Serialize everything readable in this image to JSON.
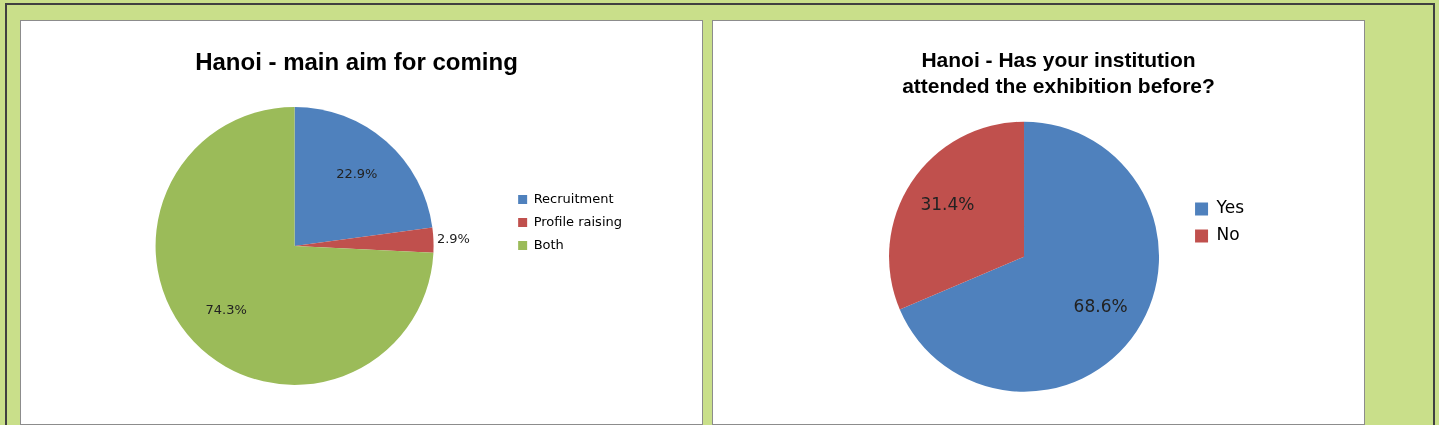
{
  "chart_data": [
    {
      "type": "pie",
      "title": "Hanoi - main aim for coming",
      "categories": [
        "Recruitment",
        "Profile raising",
        "Both"
      ],
      "values": [
        22.9,
        2.9,
        74.3
      ],
      "colors": [
        "#4f81bd",
        "#c0504d",
        "#9bbb59"
      ],
      "value_labels": [
        "22.9%",
        "2.9%",
        "74.3%"
      ],
      "legend": "right"
    },
    {
      "type": "pie",
      "title": "Hanoi - Has your institution attended the exhibition before?",
      "categories": [
        "Yes",
        "No"
      ],
      "values": [
        68.6,
        31.4
      ],
      "colors": [
        "#4f81bd",
        "#c0504d"
      ],
      "value_labels": [
        "68.6%",
        "31.4%"
      ],
      "legend": "right"
    }
  ]
}
